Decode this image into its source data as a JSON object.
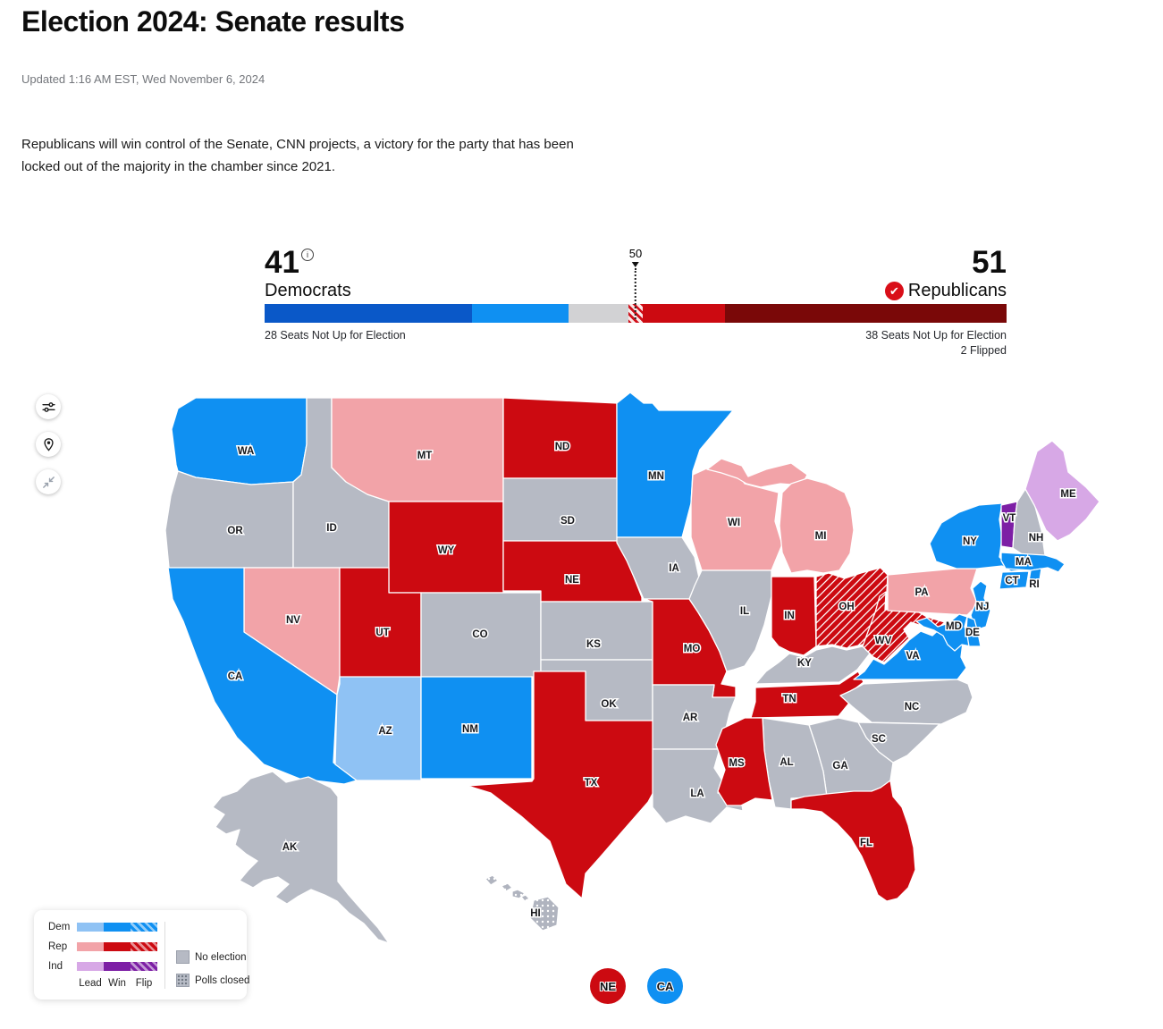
{
  "header": {
    "title": "Election 2024: Senate results",
    "updated": "Updated 1:16 AM EST, Wed November 6, 2024",
    "summary": "Republicans will win control of the Senate, CNN projects, a victory for the party that has been locked out of the majority in the chamber since 2021."
  },
  "balance_of_power": {
    "dem_count": "41",
    "dem_label": "Democrats",
    "dem_note": "28 Seats Not Up for Election",
    "rep_count": "51",
    "rep_label": "Republicans",
    "rep_note": "38 Seats Not Up for Election",
    "rep_flipped": "2 Flipped",
    "majority_label": "50",
    "total_seats": 100,
    "segments": [
      {
        "name": "dem-not-up",
        "seats": 28,
        "color": "dem_not_up"
      },
      {
        "name": "dem-win",
        "seats": 13,
        "color": "dem_win"
      },
      {
        "name": "undecided",
        "seats": 8,
        "color": "undecided"
      },
      {
        "name": "rep-flip-hatch",
        "seats": 2,
        "color": "hatch"
      },
      {
        "name": "rep-win",
        "seats": 11,
        "color": "rep_win"
      },
      {
        "name": "rep-not-up",
        "seats": 38,
        "color": "rep_not_up"
      }
    ]
  },
  "colors": {
    "dem_not_up": "#0a58c8",
    "dem_win": "#0f90f2",
    "dem_lead": "#8fc2f4",
    "rep_not_up": "#7a0808",
    "rep_win": "#cc0a11",
    "rep_lead": "#f2a3a8",
    "rep_flip_stripe": "#8d1215",
    "ind_win": "#7d1fa5",
    "ind_lead": "#d7a8e6",
    "undecided": "#d2d2d4",
    "no_election": "#b6bac4",
    "check_badge": "#d90e18"
  },
  "legend": {
    "rows": [
      {
        "label": "Dem",
        "party": "dem"
      },
      {
        "label": "Rep",
        "party": "rep"
      },
      {
        "label": "Ind",
        "party": "ind"
      }
    ],
    "columns": [
      "Lead",
      "Win",
      "Flip"
    ],
    "no_election_label": "No election",
    "polls_closed_label": "Polls closed"
  },
  "special_races": [
    {
      "label": "NE",
      "status": "rep_win"
    },
    {
      "label": "CA",
      "status": "dem_win"
    }
  ],
  "map": {
    "states": [
      {
        "id": "WA",
        "status": "dem_win"
      },
      {
        "id": "OR",
        "status": "no_election"
      },
      {
        "id": "CA",
        "status": "dem_win"
      },
      {
        "id": "ID",
        "status": "no_election"
      },
      {
        "id": "NV",
        "status": "rep_lead"
      },
      {
        "id": "MT",
        "status": "rep_lead"
      },
      {
        "id": "WY",
        "status": "rep_win"
      },
      {
        "id": "UT",
        "status": "rep_win"
      },
      {
        "id": "CO",
        "status": "no_election"
      },
      {
        "id": "AZ",
        "status": "dem_lead"
      },
      {
        "id": "NM",
        "status": "dem_win"
      },
      {
        "id": "ND",
        "status": "rep_win"
      },
      {
        "id": "SD",
        "status": "no_election"
      },
      {
        "id": "NE",
        "status": "rep_win"
      },
      {
        "id": "KS",
        "status": "no_election"
      },
      {
        "id": "OK",
        "status": "no_election"
      },
      {
        "id": "TX",
        "status": "rep_win"
      },
      {
        "id": "MN",
        "status": "dem_win"
      },
      {
        "id": "IA",
        "status": "no_election"
      },
      {
        "id": "MO",
        "status": "rep_win"
      },
      {
        "id": "AR",
        "status": "no_election"
      },
      {
        "id": "LA",
        "status": "no_election"
      },
      {
        "id": "WI",
        "status": "rep_lead"
      },
      {
        "id": "IL",
        "status": "no_election"
      },
      {
        "id": "MS",
        "status": "rep_win"
      },
      {
        "id": "MI",
        "status": "rep_lead"
      },
      {
        "id": "IN",
        "status": "rep_win"
      },
      {
        "id": "OH",
        "status": "rep_flip"
      },
      {
        "id": "KY",
        "status": "no_election"
      },
      {
        "id": "TN",
        "status": "rep_win"
      },
      {
        "id": "WV",
        "status": "rep_flip"
      },
      {
        "id": "VA",
        "status": "dem_win"
      },
      {
        "id": "NC",
        "status": "no_election"
      },
      {
        "id": "SC",
        "status": "no_election"
      },
      {
        "id": "GA",
        "status": "no_election"
      },
      {
        "id": "AL",
        "status": "no_election"
      },
      {
        "id": "FL",
        "status": "rep_win"
      },
      {
        "id": "PA",
        "status": "rep_lead"
      },
      {
        "id": "NY",
        "status": "dem_win"
      },
      {
        "id": "VT",
        "status": "ind_win"
      },
      {
        "id": "NH",
        "status": "no_election"
      },
      {
        "id": "ME",
        "status": "ind_lead"
      },
      {
        "id": "MA",
        "status": "dem_win"
      },
      {
        "id": "CT",
        "status": "dem_win"
      },
      {
        "id": "RI",
        "status": "dem_win"
      },
      {
        "id": "NJ",
        "status": "dem_win"
      },
      {
        "id": "MD",
        "status": "dem_win"
      },
      {
        "id": "DE",
        "status": "dem_win"
      },
      {
        "id": "AK",
        "status": "no_election"
      },
      {
        "id": "HI",
        "status": "polls_closed"
      }
    ]
  }
}
